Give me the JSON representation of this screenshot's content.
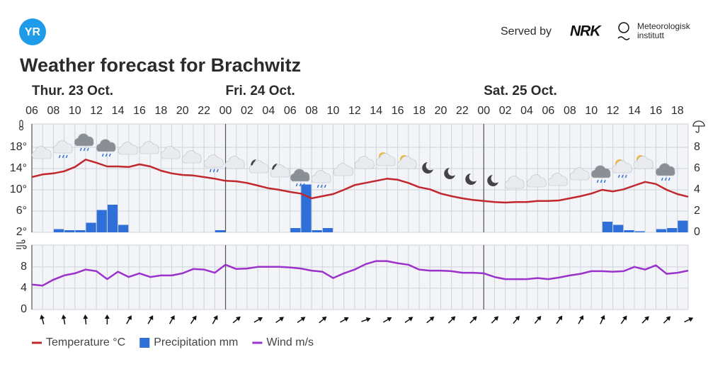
{
  "header": {
    "logo": "YR",
    "served_by": "Served by",
    "nrk": "NRK",
    "met_line1": "Meteorologisk",
    "met_line2": "institutt"
  },
  "chart_data": {
    "type": "combo",
    "title": "Weather forecast for Brachwitz",
    "day_labels": [
      "Thur. 23 Oct.",
      "Fri. 24 Oct.",
      "Sat. 25 Oct."
    ],
    "day_starts": [
      6,
      24,
      48
    ],
    "x": [
      6,
      7,
      8,
      9,
      10,
      11,
      12,
      13,
      14,
      15,
      16,
      17,
      18,
      19,
      20,
      21,
      22,
      23,
      24,
      25,
      26,
      27,
      28,
      29,
      30,
      31,
      32,
      33,
      34,
      35,
      36,
      37,
      38,
      39,
      40,
      41,
      42,
      43,
      44,
      45,
      46,
      47,
      48,
      49,
      50,
      51,
      52,
      53,
      54,
      55,
      56,
      57,
      58,
      59,
      60,
      61,
      62,
      63,
      64,
      65,
      66,
      67
    ],
    "xlim": [
      6,
      67
    ],
    "xticks": [
      {
        "value": 6,
        "label": "06"
      },
      {
        "value": 8,
        "label": "08"
      },
      10,
      12,
      14,
      16,
      18,
      20,
      22,
      {
        "value": 24,
        "label": "00"
      },
      {
        "value": 26,
        "label": "02"
      },
      {
        "value": 28,
        "label": "04"
      },
      {
        "value": 30,
        "label": "06"
      },
      {
        "value": 32,
        "label": "08"
      },
      {
        "value": 34,
        "label": "10"
      },
      {
        "value": 36,
        "label": "12"
      },
      {
        "value": 38,
        "label": "14"
      },
      {
        "value": 40,
        "label": "16"
      },
      {
        "value": 42,
        "label": "18"
      },
      {
        "value": 44,
        "label": "20"
      },
      {
        "value": 46,
        "label": "22"
      },
      {
        "value": 48,
        "label": "00"
      },
      {
        "value": 50,
        "label": "02"
      },
      {
        "value": 52,
        "label": "04"
      },
      {
        "value": 54,
        "label": "06"
      },
      {
        "value": 56,
        "label": "08"
      },
      {
        "value": 58,
        "label": "10"
      },
      {
        "value": 60,
        "label": "12"
      },
      {
        "value": 62,
        "label": "14"
      },
      {
        "value": 64,
        "label": "16"
      },
      {
        "value": 66,
        "label": "18"
      }
    ],
    "ylim": [
      2,
      22.4
    ],
    "yticks": [
      {
        "value": 2,
        "label": "2°"
      },
      {
        "value": 6,
        "label": "6°"
      },
      {
        "value": 10,
        "label": "10°"
      },
      {
        "value": 14,
        "label": "14°"
      },
      {
        "value": 18,
        "label": "18°"
      }
    ],
    "y2lim": [
      0,
      10.2
    ],
    "y2ticks": [
      0,
      2,
      4,
      6,
      8
    ],
    "wind_ylim": [
      0,
      12.1
    ],
    "wind_yticks": [
      0,
      4,
      8
    ],
    "grid": true,
    "series": [
      {
        "name": "Temperature °C",
        "type": "line",
        "color": "#c0282d",
        "values": [
          12.4,
          12.9,
          13.1,
          13.5,
          14.3,
          15.7,
          15.1,
          14.4,
          14.4,
          14.3,
          14.8,
          14.4,
          13.6,
          13.1,
          12.8,
          12.7,
          12.4,
          12.1,
          11.7,
          11.6,
          11.3,
          10.8,
          10.3,
          10,
          9.6,
          9.3,
          8.4,
          8.8,
          9.2,
          10,
          10.9,
          11.3,
          11.7,
          12.1,
          11.9,
          11.3,
          10.5,
          10.1,
          9.3,
          8.8,
          8.4,
          8.1,
          7.9,
          7.7,
          7.6,
          7.7,
          7.7,
          7.9,
          7.9,
          8,
          8.4,
          8.8,
          9.3,
          10,
          9.7,
          10.1,
          10.8,
          11.5,
          11.1,
          10,
          9.2,
          8.7
        ]
      },
      {
        "name": "Precipitation mm",
        "type": "bar",
        "axis": "y2",
        "color": "#2e6fd8",
        "values": [
          0,
          0,
          0.3,
          0.2,
          0.2,
          0.9,
          2.1,
          2.6,
          0.7,
          0,
          0,
          0,
          0,
          0,
          0,
          0,
          0,
          0.2,
          0,
          0,
          0,
          0,
          0,
          0,
          0.4,
          4.5,
          0.2,
          0.4,
          0,
          0,
          0,
          0,
          0,
          0,
          0,
          0,
          0,
          0,
          0,
          0,
          0,
          0,
          0,
          0,
          0,
          0,
          0,
          0,
          0,
          0,
          0,
          0,
          0,
          1,
          0.7,
          0.2,
          0.1,
          0,
          0.3,
          0.4,
          1.1,
          0
        ]
      },
      {
        "name": "Wind m/s",
        "type": "line",
        "axis": "wind",
        "color": "#9b32cc",
        "values": [
          4.7,
          4.5,
          5.6,
          6.4,
          6.8,
          7.5,
          7.2,
          5.7,
          7.1,
          6.1,
          6.8,
          6.1,
          6.4,
          6.4,
          6.8,
          7.6,
          7.5,
          6.9,
          8.4,
          7.6,
          7.7,
          8,
          8,
          8,
          7.9,
          7.7,
          7.3,
          7.1,
          5.9,
          6.8,
          7.5,
          8.5,
          9.1,
          9.1,
          8.7,
          8.4,
          7.5,
          7.3,
          7.3,
          7.2,
          6.9,
          6.9,
          6.8,
          6.1,
          5.7,
          5.7,
          5.7,
          5.9,
          5.7,
          6,
          6.4,
          6.7,
          7.2,
          7.2,
          7.1,
          7.2,
          8,
          7.5,
          8.3,
          6.7,
          6.9,
          7.3
        ]
      }
    ],
    "wind_direction": {
      "x": [
        7,
        9,
        11,
        13,
        15,
        17,
        19,
        21,
        23,
        25,
        27,
        29,
        31,
        33,
        35,
        37,
        39,
        41,
        43,
        45,
        47,
        49,
        51,
        53,
        55,
        57,
        59,
        61,
        63,
        65,
        67
      ],
      "values": [
        -15,
        -10,
        -5,
        0,
        30,
        30,
        30,
        35,
        30,
        50,
        60,
        55,
        55,
        50,
        60,
        70,
        60,
        55,
        50,
        45,
        45,
        45,
        40,
        40,
        35,
        30,
        25,
        35,
        45,
        45,
        65
      ]
    }
  }
}
